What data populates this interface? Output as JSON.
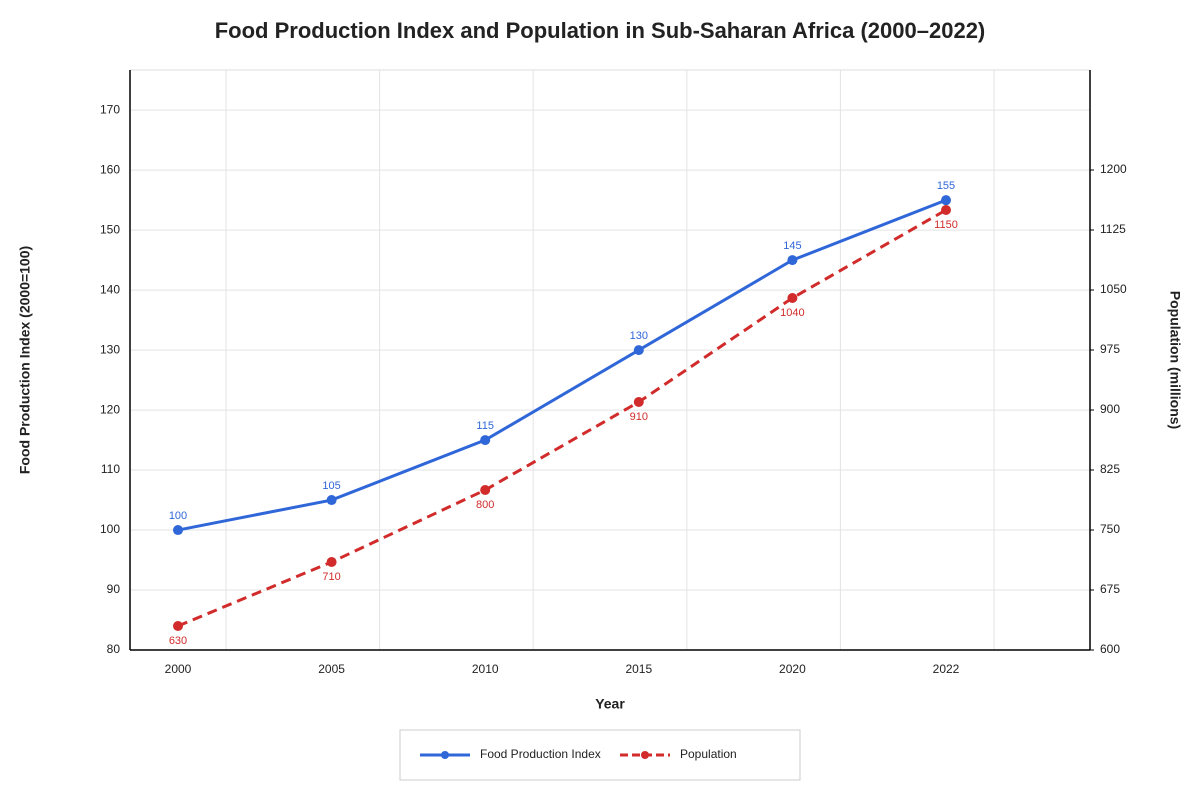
{
  "chart_data": {
    "type": "line",
    "title": "Food Production Index and Population in Sub-Saharan Africa (2000–2022)",
    "x_label": "Year",
    "y_label": "Food Production Index (2000=100)",
    "y2_label": "Population (millions)",
    "categories": [
      "2000",
      "2005",
      "2010",
      "2015",
      "2020",
      "2022"
    ],
    "series": [
      {
        "name": "Food Production Index",
        "color": "#2f66d8",
        "line_style": "solid",
        "values": [
          100,
          105,
          115,
          130,
          145,
          155
        ]
      },
      {
        "name": "Population",
        "color": "#d12b2b",
        "line_style": "dashed",
        "axis": "y2",
        "values": [
          630,
          710,
          800,
          910,
          1040,
          1150
        ]
      }
    ],
    "ylim": [
      80,
      176.7
    ],
    "yticks": [
      80,
      90,
      100,
      110,
      120,
      130,
      140,
      150,
      160,
      170
    ],
    "y2lim": [
      600,
      1325
    ],
    "y2ticks": [
      600,
      675,
      750,
      825,
      900,
      975,
      1050,
      1125,
      1200
    ],
    "grid": true,
    "legend": "bottom"
  }
}
